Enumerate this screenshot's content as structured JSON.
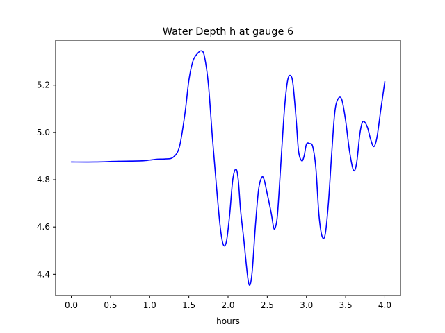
{
  "chart_data": {
    "type": "line",
    "title": "Water Depth h at gauge 6",
    "xlabel": "hours",
    "ylabel": "",
    "xlim": [
      -0.2,
      4.2
    ],
    "ylim": [
      4.31,
      5.39
    ],
    "xticks": [
      0.0,
      0.5,
      1.0,
      1.5,
      2.0,
      2.5,
      3.0,
      3.5,
      4.0
    ],
    "xtick_labels": [
      "0.0",
      "0.5",
      "1.0",
      "1.5",
      "2.0",
      "2.5",
      "3.0",
      "3.5",
      "4.0"
    ],
    "yticks": [
      4.4,
      4.6,
      4.8,
      5.0,
      5.2
    ],
    "ytick_labels": [
      "4.4",
      "4.6",
      "4.8",
      "5.0",
      "5.2"
    ],
    "grid": false,
    "legend": "none",
    "series": [
      {
        "color": "#0000ff",
        "x": [
          0.0,
          0.3,
          0.6,
          0.9,
          1.0,
          1.1,
          1.2,
          1.3,
          1.38,
          1.45,
          1.5,
          1.55,
          1.6,
          1.66,
          1.7,
          1.75,
          1.8,
          1.85,
          1.9,
          1.94,
          1.98,
          2.02,
          2.06,
          2.1,
          2.13,
          2.16,
          2.2,
          2.25,
          2.28,
          2.31,
          2.35,
          2.39,
          2.43,
          2.46,
          2.5,
          2.55,
          2.58,
          2.6,
          2.63,
          2.67,
          2.72,
          2.76,
          2.8,
          2.83,
          2.87,
          2.9,
          2.94,
          2.97,
          3.0,
          3.04,
          3.08,
          3.12,
          3.16,
          3.2,
          3.24,
          3.28,
          3.32,
          3.36,
          3.4,
          3.45,
          3.5,
          3.55,
          3.6,
          3.64,
          3.68,
          3.71,
          3.74,
          3.78,
          3.82,
          3.86,
          3.9,
          3.95,
          4.0
        ],
        "y": [
          4.875,
          4.875,
          4.878,
          4.88,
          4.883,
          4.887,
          4.888,
          4.895,
          4.94,
          5.08,
          5.22,
          5.3,
          5.33,
          5.345,
          5.32,
          5.2,
          4.98,
          4.78,
          4.6,
          4.525,
          4.54,
          4.65,
          4.8,
          4.845,
          4.8,
          4.67,
          4.55,
          4.39,
          4.355,
          4.42,
          4.61,
          4.76,
          4.81,
          4.8,
          4.74,
          4.66,
          4.6,
          4.595,
          4.65,
          4.85,
          5.1,
          5.22,
          5.24,
          5.2,
          5.05,
          4.92,
          4.88,
          4.9,
          4.95,
          4.953,
          4.94,
          4.85,
          4.65,
          4.56,
          4.57,
          4.7,
          4.9,
          5.08,
          5.14,
          5.14,
          5.05,
          4.92,
          4.84,
          4.87,
          4.99,
          5.04,
          5.045,
          5.02,
          4.97,
          4.94,
          4.98,
          5.1,
          5.215
        ]
      }
    ]
  }
}
